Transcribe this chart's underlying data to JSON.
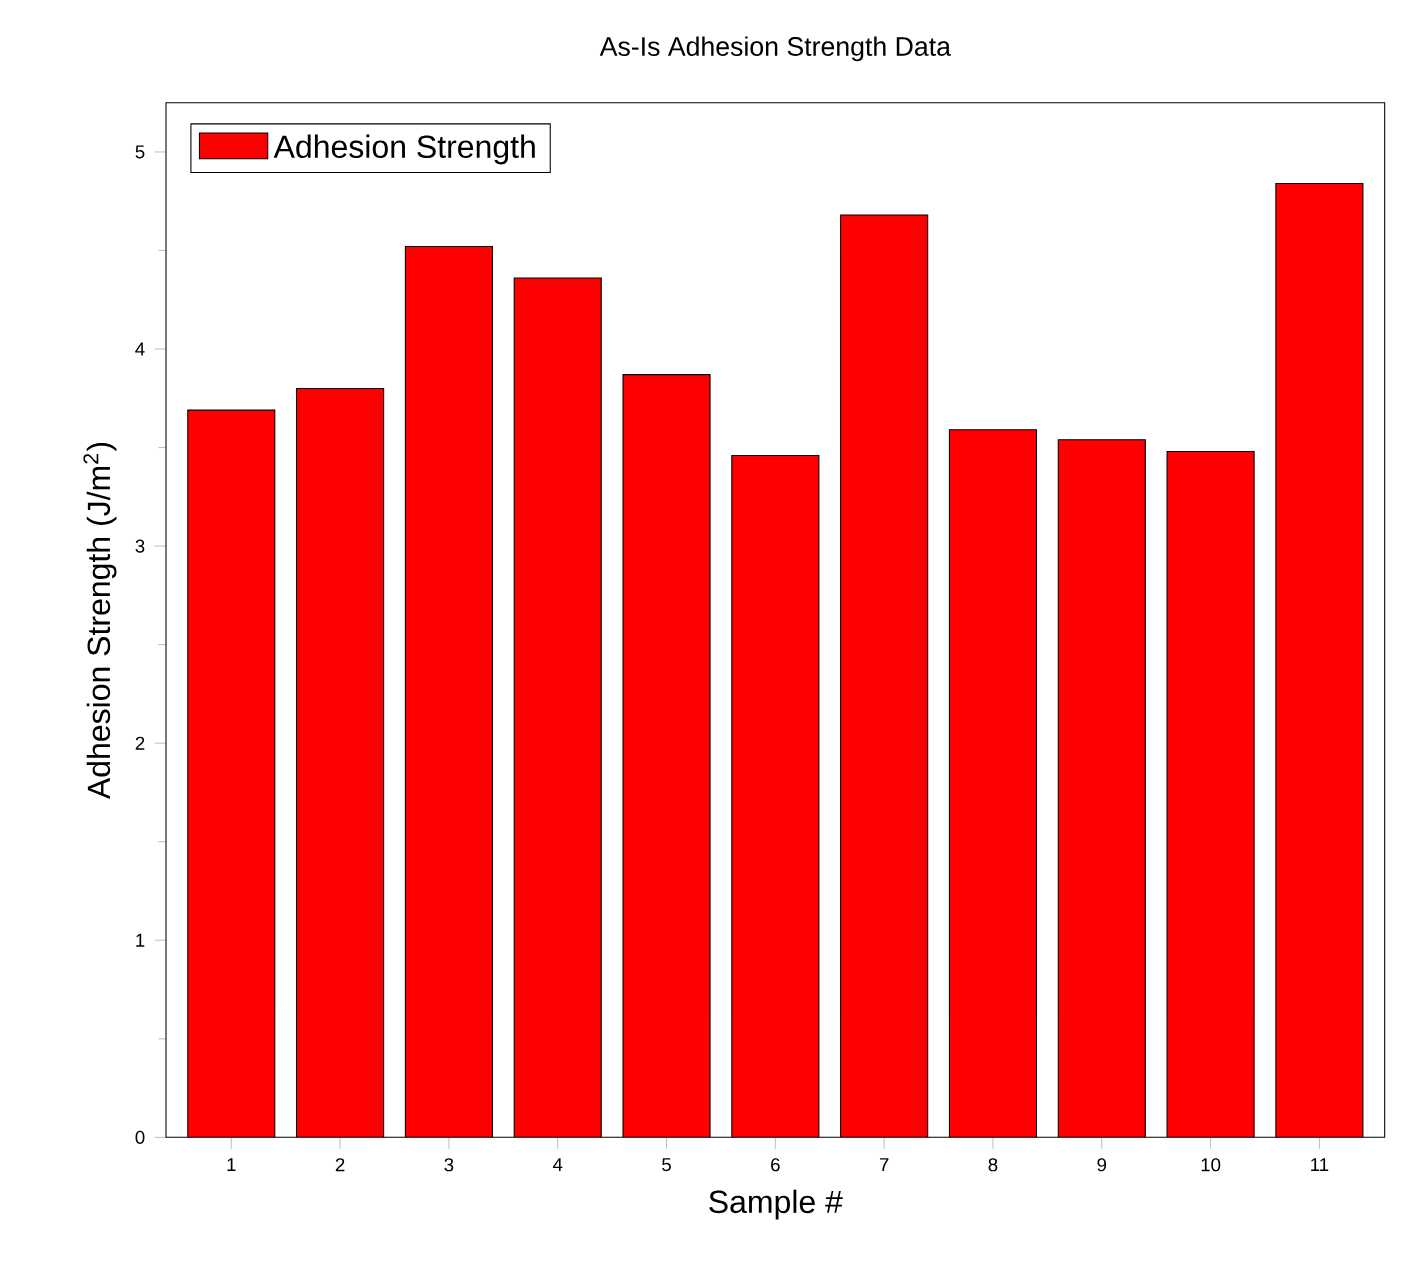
{
  "chart_data": {
    "type": "bar",
    "title": "As-Is Adhesion Strength Data",
    "xlabel": "Sample #",
    "ylabel": "Adhesion Strength (J/m$^{2}$)",
    "categories": [
      "1",
      "2",
      "3",
      "4",
      "5",
      "6",
      "7",
      "8",
      "9",
      "10",
      "11"
    ],
    "series": [
      {
        "name": "Adhesion Strength",
        "color": "#ff0000",
        "values": [
          3.69,
          3.8,
          4.52,
          4.36,
          3.87,
          3.46,
          4.68,
          3.59,
          3.54,
          3.48,
          4.84
        ]
      }
    ],
    "ylim": [
      0,
      5.25
    ],
    "yticks": [
      0,
      1,
      2,
      3,
      4,
      5
    ],
    "grid": false,
    "legend": "top left"
  }
}
